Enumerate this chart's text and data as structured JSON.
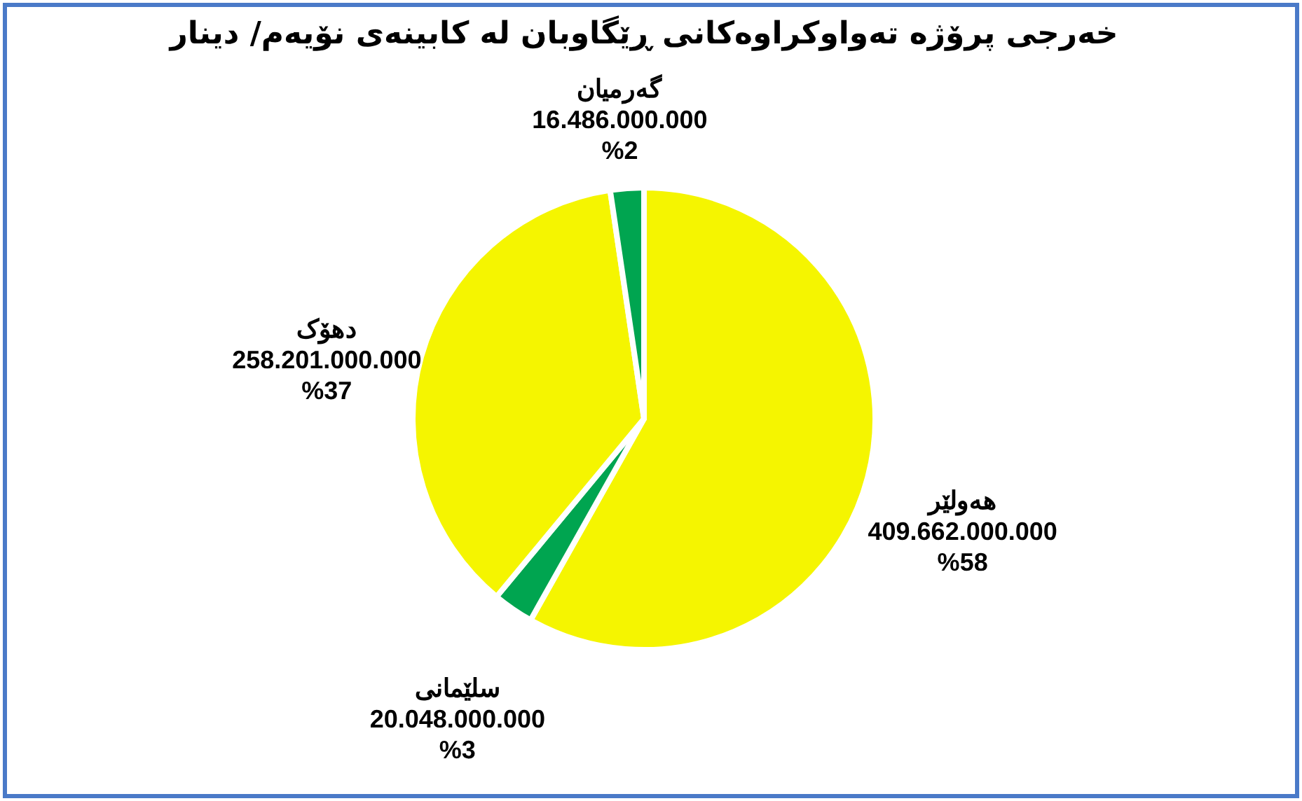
{
  "chart_data": {
    "type": "pie",
    "title": "خەرجی پرۆژە تەواوکراوەکانی ڕێگاوبان لە کابینەی نۆیەم/ دینار",
    "categories": [
      "هەولێر",
      "سلێمانی",
      "دهۆک",
      "گەرمیان"
    ],
    "values": [
      409662000000,
      20048000000,
      258201000000,
      16486000000
    ],
    "colors": [
      "#f5f500",
      "#00a550",
      "#f5f500",
      "#00a550"
    ],
    "value_labels": [
      "409.662.000.000\n%58",
      "20.048.000.000\n%3",
      "258.201.000.000\n%37",
      "16.486.000.000\n%2"
    ],
    "legend": false
  }
}
